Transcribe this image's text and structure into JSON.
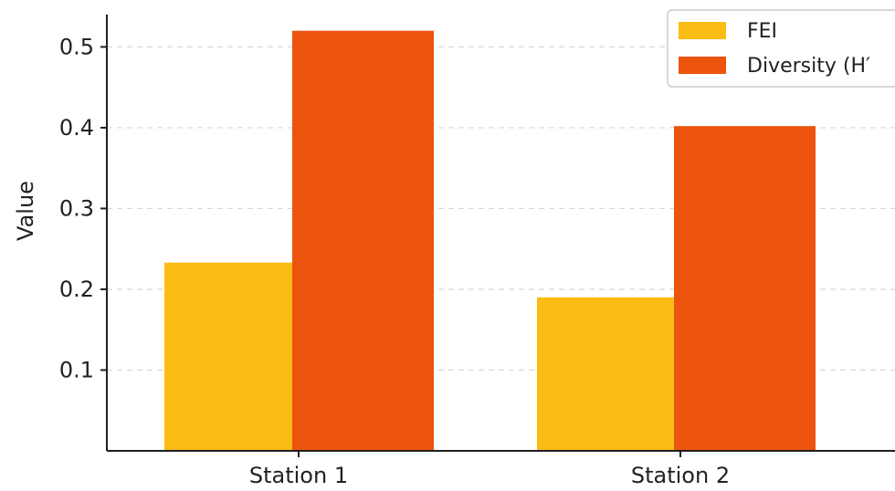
{
  "chart_data": {
    "type": "bar",
    "categories": [
      "Station 1",
      "Station 2"
    ],
    "series": [
      {
        "name": "FEI",
        "values": [
          0.233,
          0.19
        ],
        "color": "#FBBC13"
      },
      {
        "name": "Diversity (H′",
        "values": [
          0.52,
          0.402
        ],
        "color": "#EC540E"
      }
    ],
    "title": "",
    "xlabel": "",
    "ylabel": "Value",
    "ylim": [
      0,
      0.54
    ],
    "yticks": [
      0.1,
      0.2,
      0.3,
      0.4,
      0.5
    ],
    "ytick_labels": [
      "0.1",
      "0.2",
      "0.3",
      "0.4",
      "0.5"
    ],
    "grid": "y-dashed",
    "legend": "top-right"
  }
}
